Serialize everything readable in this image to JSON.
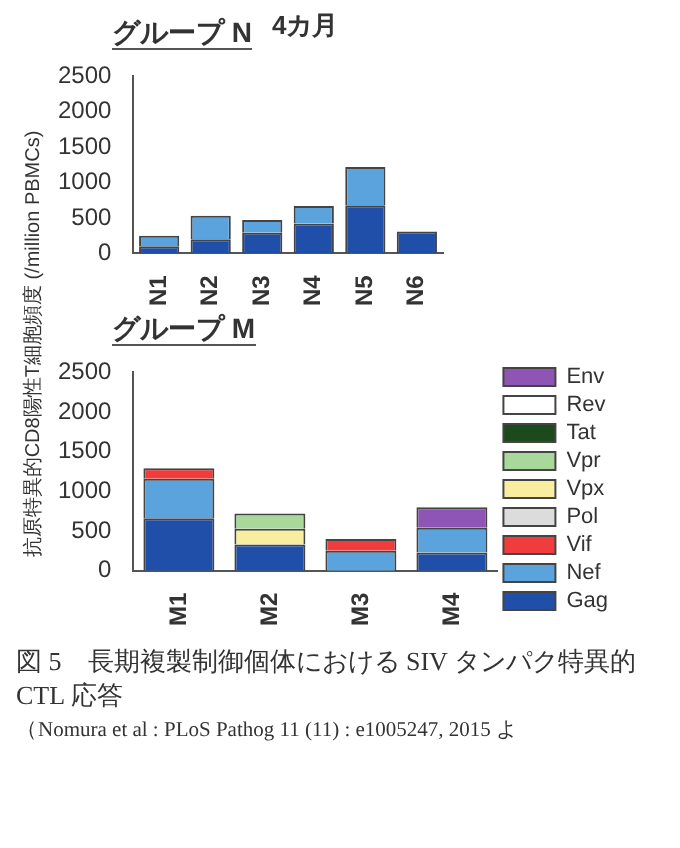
{
  "chart_data": [
    {
      "type": "bar",
      "title": "グループ N",
      "subtitle": "4カ月",
      "ylabel": "抗原特異的CD8陽性T細胞頻度 (/million PBMCs)",
      "categories": [
        "N1",
        "N2",
        "N3",
        "N4",
        "N5",
        "N6"
      ],
      "stacked": true,
      "ylim": [
        0,
        2500
      ],
      "yticks": [
        0,
        500,
        1000,
        1500,
        2000,
        2500
      ],
      "grid": false,
      "legend": false,
      "series": [
        {
          "color": "#1f4fa8",
          "values": [
            100,
            200,
            290,
            420,
            680,
            310
          ]
        },
        {
          "color": "#5aa3dc",
          "values": [
            150,
            330,
            180,
            250,
            540,
            0
          ]
        }
      ]
    },
    {
      "type": "bar",
      "title": "グループ M",
      "categories": [
        "M1",
        "M2",
        "M3",
        "M4"
      ],
      "stacked": true,
      "ylim": [
        0,
        2500
      ],
      "yticks": [
        0,
        500,
        1000,
        1500,
        2000,
        2500
      ],
      "grid": false,
      "legend": "right",
      "annotations": [
        "図 5　長期複製制御個体における SIV タンパク特異的 CTL 応答",
        "（Nomura et al : PLoS Pathog 11 (11) : e1005247, 2015 よ"
      ],
      "series": [
        {
          "name": "Gag",
          "color": "#1f4fa8",
          "values": [
            660,
            330,
            0,
            230
          ]
        },
        {
          "name": "Nef",
          "color": "#5aa3dc",
          "values": [
            500,
            0,
            250,
            310
          ]
        },
        {
          "name": "Vif",
          "color": "#f03c3c",
          "values": [
            130,
            0,
            150,
            0
          ]
        },
        {
          "name": "Pol",
          "color": "#dcdcdc",
          "values": [
            0,
            0,
            0,
            0
          ]
        },
        {
          "name": "Vpx",
          "color": "#f7eea0",
          "values": [
            0,
            200,
            0,
            0
          ]
        },
        {
          "name": "Vpr",
          "color": "#a8d89a",
          "values": [
            0,
            190,
            0,
            0
          ]
        },
        {
          "name": "Tat",
          "color": "#1d4a1d",
          "values": [
            0,
            0,
            0,
            0
          ]
        },
        {
          "name": "Rev",
          "color": "#ffffff",
          "values": [
            0,
            0,
            0,
            0
          ]
        },
        {
          "name": "Env",
          "color": "#8e55b5",
          "values": [
            0,
            0,
            0,
            260
          ]
        }
      ]
    }
  ]
}
